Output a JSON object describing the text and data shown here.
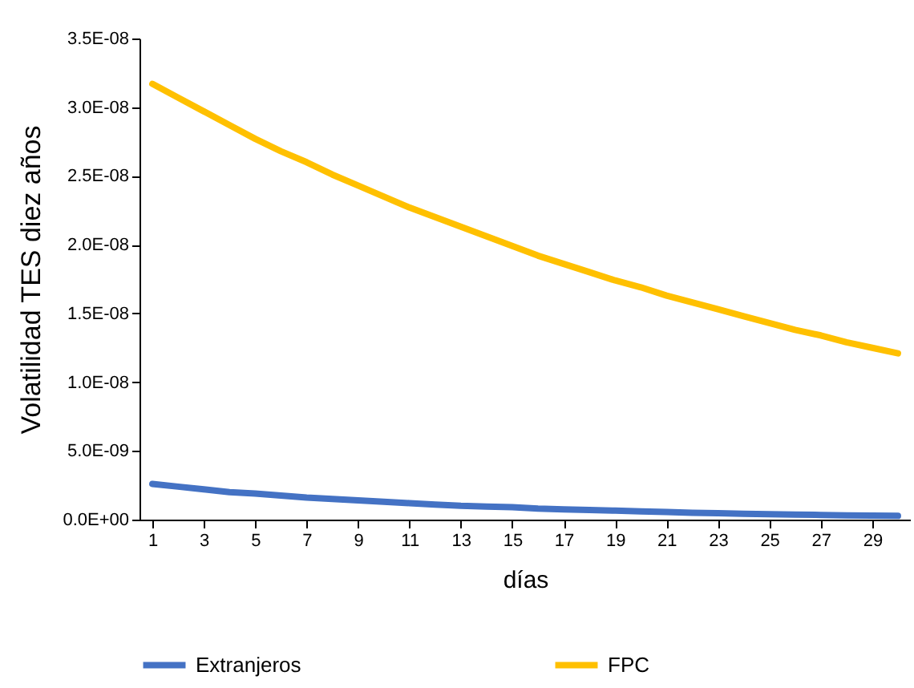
{
  "chart_data": {
    "type": "line",
    "xlabel": "días",
    "ylabel": "Volatilidad TES diez años",
    "x": [
      1,
      2,
      3,
      4,
      5,
      6,
      7,
      8,
      9,
      10,
      11,
      12,
      13,
      14,
      15,
      16,
      17,
      18,
      19,
      20,
      21,
      22,
      23,
      24,
      25,
      26,
      27,
      28,
      29,
      30
    ],
    "xlim": [
      0.5,
      30.5
    ],
    "xticks": [
      1,
      3,
      5,
      7,
      9,
      11,
      13,
      15,
      17,
      19,
      21,
      23,
      25,
      27,
      29
    ],
    "ylim": [
      0,
      3.5e-08
    ],
    "yticks": [
      {
        "value": 0,
        "label": "0.0E+00"
      },
      {
        "value": 5e-09,
        "label": "5.0E-09"
      },
      {
        "value": 1e-08,
        "label": "1.0E-08"
      },
      {
        "value": 1.5e-08,
        "label": "1.5E-08"
      },
      {
        "value": 2e-08,
        "label": "2.0E-08"
      },
      {
        "value": 2.5e-08,
        "label": "2.5E-08"
      },
      {
        "value": 3e-08,
        "label": "3.0E-08"
      },
      {
        "value": 3.5e-08,
        "label": "3.5E-08"
      }
    ],
    "series": [
      {
        "name": "Extranjeros",
        "color": "#4472c4",
        "values": [
          2.6e-09,
          2.4e-09,
          2.2e-09,
          2e-09,
          1.9e-09,
          1.75e-09,
          1.6e-09,
          1.5e-09,
          1.4e-09,
          1.3e-09,
          1.2e-09,
          1.1e-09,
          1e-09,
          9.5e-10,
          9e-10,
          8e-10,
          7.5e-10,
          7e-10,
          6.5e-10,
          6e-10,
          5.5e-10,
          5e-10,
          4.7e-10,
          4.3e-10,
          4e-10,
          3.7e-10,
          3.4e-10,
          3.1e-10,
          2.9e-10,
          2.7e-10
        ]
      },
      {
        "name": "FPC",
        "color": "#ffc000",
        "values": [
          3.17e-08,
          3.07e-08,
          2.97e-08,
          2.87e-08,
          2.77e-08,
          2.68e-08,
          2.6e-08,
          2.51e-08,
          2.43e-08,
          2.35e-08,
          2.27e-08,
          2.2e-08,
          2.13e-08,
          2.06e-08,
          1.99e-08,
          1.92e-08,
          1.86e-08,
          1.8e-08,
          1.74e-08,
          1.69e-08,
          1.63e-08,
          1.58e-08,
          1.53e-08,
          1.48e-08,
          1.43e-08,
          1.38e-08,
          1.34e-08,
          1.29e-08,
          1.25e-08,
          1.21e-08
        ]
      }
    ],
    "legend": "bottom",
    "grid": false,
    "marker": "none",
    "line_style": "solid"
  }
}
